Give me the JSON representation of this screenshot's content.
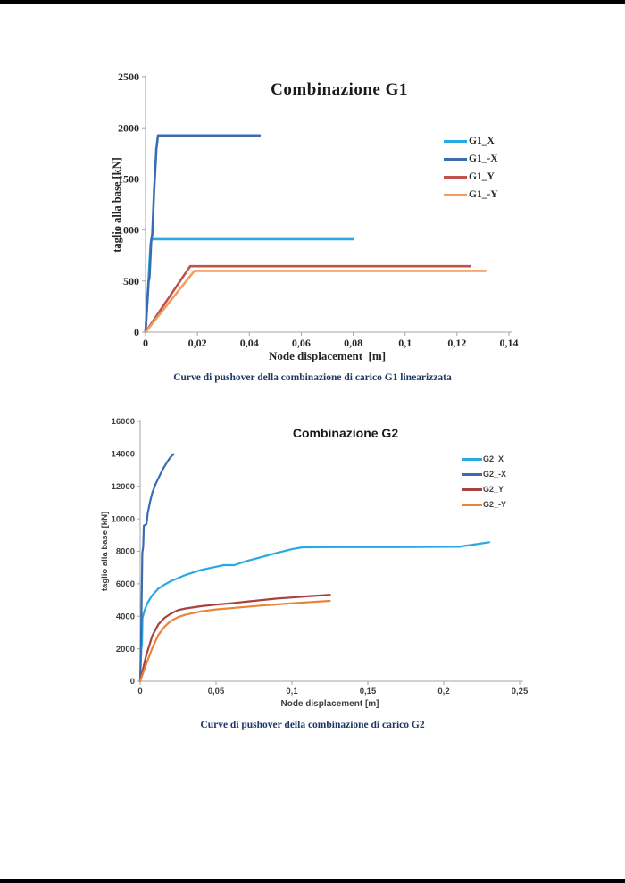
{
  "page": {
    "background": "#FFFFFF",
    "edge_bar_color": "#000000"
  },
  "chart_data": [
    {
      "type": "line",
      "title": "Combinazione G1",
      "ylabel": "taglio alla base [kN]",
      "xlabel": "Node displacement  [m]",
      "caption": "Curve di pushover della combinazione di carico G1 linearizzata",
      "xlim": [
        0,
        0.14
      ],
      "ylim": [
        0,
        2500
      ],
      "grid": false,
      "legend_position": "right",
      "axis_color": "#A6A6A6",
      "x_ticks": {
        "values": [
          0,
          0.02,
          0.04,
          0.06,
          0.08,
          0.1,
          0.12,
          0.14
        ],
        "labels": [
          "0",
          "0,02",
          "0,04",
          "0,06",
          "0,08",
          "0,1",
          "0,12",
          "0,14"
        ]
      },
      "y_ticks": {
        "values": [
          0,
          500,
          1000,
          1500,
          2000,
          2500
        ],
        "labels": [
          "0",
          "500",
          "1000",
          "1500",
          "2000",
          "2500"
        ]
      },
      "series": [
        {
          "name": "G1_X",
          "color": "#27AAE1",
          "points": [
            [
              0,
              0
            ],
            [
              0.002,
              870
            ],
            [
              0.0024,
              910
            ],
            [
              0.08,
              910
            ]
          ]
        },
        {
          "name": "G1_-X",
          "color": "#3A6CB3",
          "points": [
            [
              0,
              0
            ],
            [
              0.0012,
              500
            ],
            [
              0.0015,
              530
            ],
            [
              0.0022,
              900
            ],
            [
              0.0026,
              960
            ],
            [
              0.0033,
              1380
            ],
            [
              0.0042,
              1800
            ],
            [
              0.0048,
              1925
            ],
            [
              0.044,
              1925
            ]
          ]
        },
        {
          "name": "G1_Y",
          "color": "#BE524E",
          "points": [
            [
              0,
              0
            ],
            [
              0.0172,
              645
            ],
            [
              0.125,
              645
            ]
          ]
        },
        {
          "name": "G1_-Y",
          "color": "#F29C5F",
          "points": [
            [
              0,
              0
            ],
            [
              0.0188,
              600
            ],
            [
              0.131,
              600
            ]
          ]
        }
      ]
    },
    {
      "type": "line",
      "title": "Combinazione G2",
      "ylabel": "taglio alla base [kN]",
      "xlabel": "Node displacement [m]",
      "caption": "Curve di pushover della combinazione di carico G2",
      "xlim": [
        0,
        0.25
      ],
      "ylim": [
        0,
        16000
      ],
      "grid": false,
      "legend_position": "right",
      "axis_color": "#A6A6A6",
      "x_ticks": {
        "values": [
          0,
          0.05,
          0.1,
          0.15,
          0.2,
          0.25
        ],
        "labels": [
          "0",
          "0,05",
          "0,1",
          "0,15",
          "0,2",
          "0,25"
        ]
      },
      "y_ticks": {
        "values": [
          0,
          2000,
          4000,
          6000,
          8000,
          10000,
          12000,
          14000,
          16000
        ],
        "labels": [
          "0",
          "2000",
          "4000",
          "6000",
          "8000",
          "10000",
          "12000",
          "14000",
          "16000"
        ]
      },
      "series": [
        {
          "name": "G2_X",
          "color": "#27AAE1",
          "points": [
            [
              0,
              0
            ],
            [
              0.0008,
              2100
            ],
            [
              0.0012,
              2200
            ],
            [
              0.0015,
              3900
            ],
            [
              0.003,
              4400
            ],
            [
              0.005,
              4850
            ],
            [
              0.008,
              5300
            ],
            [
              0.012,
              5700
            ],
            [
              0.016,
              5950
            ],
            [
              0.02,
              6150
            ],
            [
              0.03,
              6550
            ],
            [
              0.04,
              6850
            ],
            [
              0.05,
              7050
            ],
            [
              0.055,
              7150
            ],
            [
              0.062,
              7150
            ],
            [
              0.07,
              7400
            ],
            [
              0.08,
              7650
            ],
            [
              0.09,
              7900
            ],
            [
              0.1,
              8130
            ],
            [
              0.107,
              8250
            ],
            [
              0.13,
              8260
            ],
            [
              0.17,
              8260
            ],
            [
              0.21,
              8280
            ],
            [
              0.22,
              8420
            ],
            [
              0.23,
              8560
            ]
          ]
        },
        {
          "name": "G2_-X",
          "color": "#3A6CB3",
          "points": [
            [
              0,
              0
            ],
            [
              0.0008,
              4000
            ],
            [
              0.0014,
              7900
            ],
            [
              0.002,
              8300
            ],
            [
              0.0024,
              9580
            ],
            [
              0.0042,
              9680
            ],
            [
              0.005,
              10350
            ],
            [
              0.0065,
              11050
            ],
            [
              0.008,
              11600
            ],
            [
              0.01,
              12100
            ],
            [
              0.012,
              12500
            ],
            [
              0.014,
              12880
            ],
            [
              0.016,
              13230
            ],
            [
              0.018,
              13530
            ],
            [
              0.02,
              13800
            ],
            [
              0.022,
              13980
            ]
          ]
        },
        {
          "name": "G2_Y",
          "color": "#A8423E",
          "points": [
            [
              0,
              0
            ],
            [
              0.004,
              1600
            ],
            [
              0.008,
              2800
            ],
            [
              0.012,
              3500
            ],
            [
              0.016,
              3900
            ],
            [
              0.02,
              4150
            ],
            [
              0.025,
              4380
            ],
            [
              0.03,
              4480
            ],
            [
              0.04,
              4620
            ],
            [
              0.05,
              4720
            ],
            [
              0.06,
              4800
            ],
            [
              0.07,
              4900
            ],
            [
              0.08,
              5000
            ],
            [
              0.09,
              5090
            ],
            [
              0.1,
              5160
            ],
            [
              0.11,
              5230
            ],
            [
              0.125,
              5320
            ]
          ]
        },
        {
          "name": "G2_-Y",
          "color": "#E98538",
          "points": [
            [
              0,
              0
            ],
            [
              0.004,
              1050
            ],
            [
              0.008,
              2050
            ],
            [
              0.012,
              2850
            ],
            [
              0.016,
              3350
            ],
            [
              0.02,
              3700
            ],
            [
              0.025,
              3950
            ],
            [
              0.03,
              4100
            ],
            [
              0.04,
              4300
            ],
            [
              0.05,
              4420
            ],
            [
              0.06,
              4500
            ],
            [
              0.07,
              4580
            ],
            [
              0.08,
              4660
            ],
            [
              0.09,
              4730
            ],
            [
              0.1,
              4800
            ],
            [
              0.11,
              4860
            ],
            [
              0.125,
              4950
            ]
          ]
        }
      ]
    }
  ]
}
